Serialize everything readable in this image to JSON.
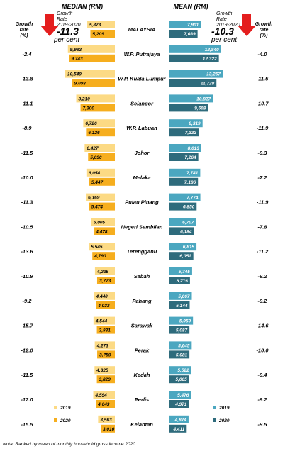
{
  "chart_data": {
    "type": "bar",
    "median_header": "MEDIAN (RM)",
    "mean_header": "MEAN (RM)",
    "growth_label_left": [
      "Growth",
      "rate",
      "(%)"
    ],
    "growth_label_right": [
      "Growth",
      "rate",
      "(%)"
    ],
    "median_summary": {
      "line1": "Growth",
      "line2": "Rate",
      "line3": "2019-2020",
      "value": "-11.3",
      "unit": "per cent"
    },
    "mean_summary": {
      "line1": "Growth",
      "line2": "Rate",
      "line3": "2019-2020",
      "value": "-10.3",
      "unit": "per cent"
    },
    "legend": {
      "y2019": "2019",
      "y2020": "2020"
    },
    "colors": {
      "median_2019": "#FCDA84",
      "median_2020": "#F6AE1E",
      "mean_2019": "#4BA7C0",
      "mean_2020": "#2E6B7C",
      "arrow": "#E41E1E"
    },
    "rows": [
      {
        "state": "MALAYSIA",
        "median_growth": "",
        "median_2019": 5873,
        "median_2020": 5209,
        "mean_2019": 7901,
        "mean_2020": 7089,
        "mean_growth": ""
      },
      {
        "state": "W.P. Putrajaya",
        "median_growth": "-2.4",
        "median_2019": 9983,
        "median_2020": 9743,
        "mean_2019": 12840,
        "mean_2020": 12322,
        "mean_growth": "-4.0"
      },
      {
        "state": "W.P. Kuala Lumpur",
        "median_growth": "-13.8",
        "median_2019": 10549,
        "median_2020": 9093,
        "mean_2019": 13257,
        "mean_2020": 11728,
        "mean_growth": "-11.5"
      },
      {
        "state": "Selangor",
        "median_growth": "-11.1",
        "median_2019": 8210,
        "median_2020": 7300,
        "mean_2019": 10827,
        "mean_2020": 9668,
        "mean_growth": "-10.7"
      },
      {
        "state": "W.P. Labuan",
        "median_growth": "-8.9",
        "median_2019": 6726,
        "median_2020": 6126,
        "mean_2019": 8319,
        "mean_2020": 7333,
        "mean_growth": "-11.9"
      },
      {
        "state": "Johor",
        "median_growth": "-11.5",
        "median_2019": 6427,
        "median_2020": 5690,
        "mean_2019": 8013,
        "mean_2020": 7264,
        "mean_growth": "-9.3"
      },
      {
        "state": "Melaka",
        "median_growth": "-10.0",
        "median_2019": 6054,
        "median_2020": 5447,
        "mean_2019": 7741,
        "mean_2020": 7186,
        "mean_growth": "-7.2"
      },
      {
        "state": "Pulau Pinang",
        "median_growth": "-11.3",
        "median_2019": 6169,
        "median_2020": 5474,
        "mean_2019": 7774,
        "mean_2020": 6850,
        "mean_growth": "-11.9"
      },
      {
        "state": "Negeri Sembilan",
        "median_growth": "-10.5",
        "median_2019": 5005,
        "median_2020": 4478,
        "mean_2019": 6707,
        "mean_2020": 6184,
        "mean_growth": "-7.8"
      },
      {
        "state": "Terengganu",
        "median_growth": "-13.6",
        "median_2019": 5545,
        "median_2020": 4790,
        "mean_2019": 6815,
        "mean_2020": 6051,
        "mean_growth": "-11.2"
      },
      {
        "state": "Sabah",
        "median_growth": "-10.9",
        "median_2019": 4235,
        "median_2020": 3773,
        "mean_2019": 5745,
        "mean_2020": 5215,
        "mean_growth": "-9.2"
      },
      {
        "state": "Pahang",
        "median_growth": "-9.2",
        "median_2019": 4440,
        "median_2020": 4033,
        "mean_2019": 5667,
        "mean_2020": 5144,
        "mean_growth": "-9.2"
      },
      {
        "state": "Sarawak",
        "median_growth": "-15.7",
        "median_2019": 4544,
        "median_2020": 3831,
        "mean_2019": 5959,
        "mean_2020": 5087,
        "mean_growth": "-14.6"
      },
      {
        "state": "Perak",
        "median_growth": "-12.0",
        "median_2019": 4273,
        "median_2020": 3759,
        "mean_2019": 5645,
        "mean_2020": 5081,
        "mean_growth": "-10.0"
      },
      {
        "state": "Kedah",
        "median_growth": "-11.5",
        "median_2019": 4325,
        "median_2020": 3829,
        "mean_2019": 5522,
        "mean_2020": 5005,
        "mean_growth": "-9.4"
      },
      {
        "state": "Perlis",
        "median_growth": "-12.0",
        "median_2019": 4594,
        "median_2020": 4043,
        "mean_2019": 5476,
        "mean_2020": 4971,
        "mean_growth": "-9.2"
      },
      {
        "state": "Kelantan",
        "median_growth": "-15.5",
        "median_2019": 3563,
        "median_2020": 3010,
        "mean_2019": 4874,
        "mean_2020": 4411,
        "mean_growth": "-9.5"
      }
    ],
    "note": "Nota: Ranked by mean of monthly household gross income 2020"
  }
}
